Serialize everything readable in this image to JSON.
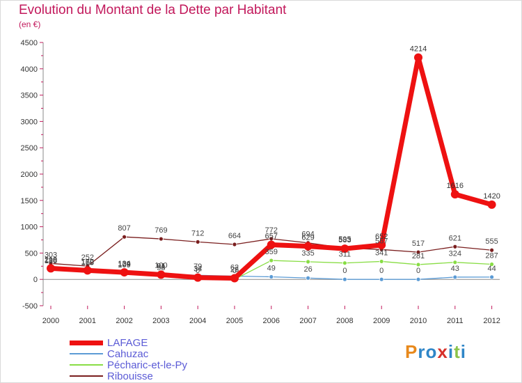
{
  "title": "Evolution du Montant de la Dette par Habitant",
  "subtitle": "(en €)",
  "logo": "Proxiti",
  "chart_data": {
    "type": "line",
    "x": [
      "2000",
      "2001",
      "2002",
      "2003",
      "2004",
      "2005",
      "2006",
      "2007",
      "2008",
      "2009",
      "2010",
      "2011",
      "2012"
    ],
    "ylim": [
      -500,
      4500
    ],
    "yticks": [
      -500,
      0,
      500,
      1000,
      1500,
      2000,
      2500,
      3000,
      3500,
      4000,
      4500
    ],
    "grid": false,
    "legend_position": "bottom-left",
    "series": [
      {
        "name": "LAFAGE",
        "color": "#ee1111",
        "values": [
          210,
          170,
          134,
          91,
          34,
          23,
          657,
          629,
          583,
          652,
          4214,
          1616,
          1420
        ]
      },
      {
        "name": "Cahuzac",
        "color": "#5b9bd5",
        "values": [
          186,
          158,
          129,
          100,
          79,
          62,
          49,
          26,
          0,
          0,
          0,
          43,
          44
        ]
      },
      {
        "name": "Pécharic-et-le-Py",
        "color": "#88dd44",
        "values": [
          198,
          160,
          109,
          58,
          0,
          0,
          359,
          335,
          311,
          341,
          281,
          324,
          287
        ]
      },
      {
        "name": "Ribouisse",
        "color": "#7a1e1e",
        "values": [
          303,
          252,
          807,
          769,
          712,
          664,
          772,
          694,
          595,
          567,
          517,
          621,
          555
        ]
      }
    ]
  }
}
